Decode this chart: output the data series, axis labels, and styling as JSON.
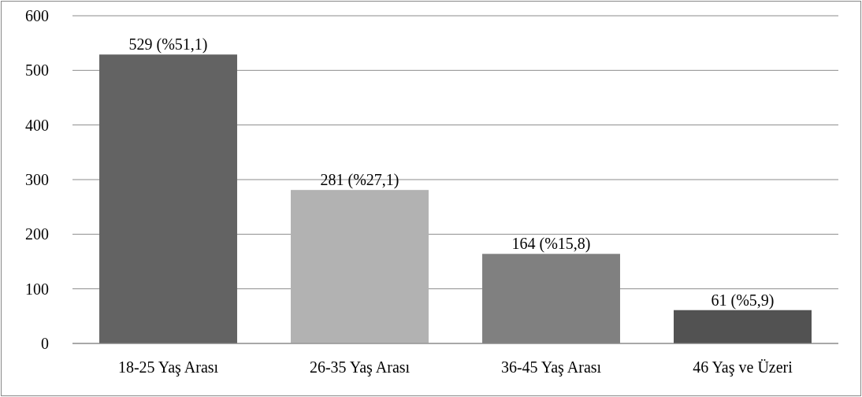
{
  "chart_data": {
    "type": "bar",
    "categories": [
      "18-25 Yaş Arası",
      "26-35 Yaş Arası",
      "36-45 Yaş Arası",
      "46 Yaş ve Üzeri"
    ],
    "values": [
      529,
      281,
      164,
      61
    ],
    "colors": [
      "#636363",
      "#b2b2b2",
      "#808080",
      "#525252"
    ],
    "value_labels": [
      "529 (%51,1)",
      "281 (%27,1)",
      "164 (%15,8)",
      "61 (%5,9)"
    ],
    "ylim": [
      0,
      600
    ],
    "yticks": [
      0,
      100,
      200,
      300,
      400,
      500,
      600
    ],
    "grid": "y"
  }
}
